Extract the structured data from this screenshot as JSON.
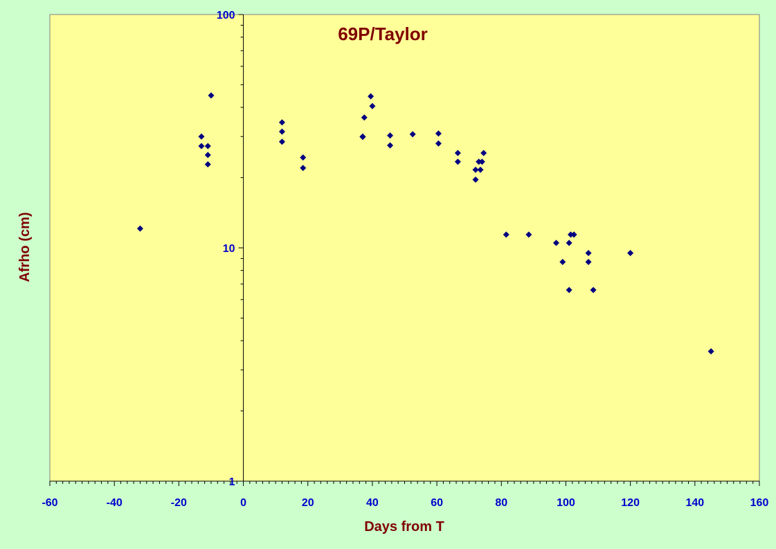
{
  "chart_data": {
    "type": "scatter",
    "title": "69P/Taylor",
    "xlabel": "Days from T",
    "ylabel": "Afrho (cm)",
    "xlim": [
      -60,
      160
    ],
    "ylim": [
      1,
      100
    ],
    "yscale": "log",
    "x_ticks": [
      "-60",
      "-40",
      "-20",
      "0",
      "20",
      "40",
      "60",
      "80",
      "100",
      "120",
      "140",
      "160"
    ],
    "y_ticks": [
      "1",
      "10",
      "100"
    ],
    "grid": false,
    "legend": "none",
    "colors": {
      "background": "#ccffcc",
      "plot_area": "#ffff99",
      "marker": "#000080",
      "tick_text": "#0000cc",
      "title_text": "#800000"
    },
    "series": [
      {
        "x": [
          -32,
          -13,
          -13,
          -11,
          -11,
          -11,
          -10,
          12,
          12,
          12,
          18.5,
          18.5,
          37,
          37,
          37.5,
          39.5,
          40,
          45.5,
          45.5,
          52.5,
          60.5,
          60.5,
          66.5,
          66.5,
          72,
          72,
          73,
          73.5,
          74,
          74.5,
          81.5,
          88.5,
          97,
          99,
          101,
          101,
          101.5,
          102.5,
          107,
          107,
          108.5,
          120,
          145
        ],
        "y": [
          12.1,
          30,
          27.3,
          27.3,
          25,
          22.8,
          45,
          34.5,
          31.5,
          28.5,
          24.4,
          22,
          30,
          29.9,
          36.2,
          44.6,
          40.5,
          30.3,
          27.5,
          30.7,
          30.9,
          28,
          25.5,
          23.4,
          21.6,
          19.6,
          23.4,
          21.6,
          23.4,
          25.5,
          11.4,
          11.4,
          10.5,
          8.7,
          6.6,
          10.5,
          11.4,
          11.4,
          9.5,
          8.7,
          6.6,
          9.5,
          3.6
        ]
      }
    ]
  }
}
